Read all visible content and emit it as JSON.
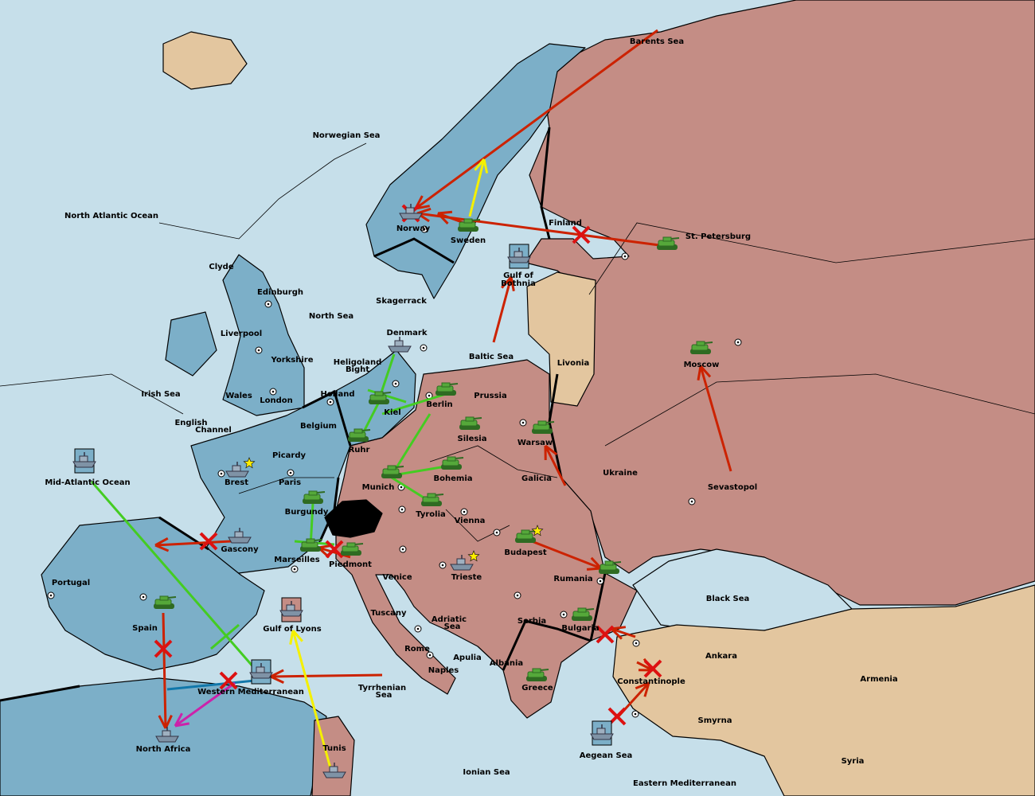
{
  "colors": {
    "sea": "#c6dfea",
    "power_blue": "#7cafc8",
    "power_red": "#c48d85",
    "neutral_tan": "#e3c69f",
    "impassable": "#000000",
    "unit_army": "#55a83a",
    "unit_fleet": "#7f93a6",
    "order_move": "#cc2200",
    "order_support_yellow": "#f4f000",
    "order_support_green": "#44cc22",
    "order_convoy_blue": "#1177aa",
    "order_magenta": "#cc22aa",
    "failed_order_x": "#dd1111",
    "star": "#ffee00"
  },
  "territories": [
    {
      "name": "Barents Sea"
    },
    {
      "name": "Norwegian Sea"
    },
    {
      "name": "North Atlantic Ocean"
    },
    {
      "name": "Norway"
    },
    {
      "name": "Sweden"
    },
    {
      "name": "Finland"
    },
    {
      "name": "St. Petersburg"
    },
    {
      "name": "Gulf of"
    },
    {
      "name": "Bothnia"
    },
    {
      "name": "Clyde"
    },
    {
      "name": "Edinburgh"
    },
    {
      "name": "North Sea"
    },
    {
      "name": "Skagerrack"
    },
    {
      "name": "Liverpool"
    },
    {
      "name": "Denmark"
    },
    {
      "name": "Yorkshire"
    },
    {
      "name": "Heligoland"
    },
    {
      "name": "Bight"
    },
    {
      "name": "Baltic Sea"
    },
    {
      "name": "Livonia"
    },
    {
      "name": "Moscow"
    },
    {
      "name": "Irish Sea"
    },
    {
      "name": "Wales"
    },
    {
      "name": "London"
    },
    {
      "name": "Holland"
    },
    {
      "name": "Prussia"
    },
    {
      "name": "Berlin"
    },
    {
      "name": "Kiel"
    },
    {
      "name": "English"
    },
    {
      "name": "Channel"
    },
    {
      "name": "Belgium"
    },
    {
      "name": "Silesia"
    },
    {
      "name": "Warsaw"
    },
    {
      "name": "Ruhr"
    },
    {
      "name": "Picardy"
    },
    {
      "name": "Ukraine"
    },
    {
      "name": "Brest"
    },
    {
      "name": "Paris"
    },
    {
      "name": "Mid-Atlantic Ocean"
    },
    {
      "name": "Bohemia"
    },
    {
      "name": "Galicia"
    },
    {
      "name": "Munich"
    },
    {
      "name": "Sevastopol"
    },
    {
      "name": "Burgundy"
    },
    {
      "name": "Tyrolia"
    },
    {
      "name": "Vienna"
    },
    {
      "name": "Gascony"
    },
    {
      "name": "Budapest"
    },
    {
      "name": "Marseilles"
    },
    {
      "name": "Piedmont"
    },
    {
      "name": "Venice"
    },
    {
      "name": "Trieste"
    },
    {
      "name": "Rumania"
    },
    {
      "name": "Portugal"
    },
    {
      "name": "Black Sea"
    },
    {
      "name": "Tuscany"
    },
    {
      "name": "Adriatic"
    },
    {
      "name": "Sea"
    },
    {
      "name": "Serbia"
    },
    {
      "name": "Spain"
    },
    {
      "name": "Gulf of Lyons"
    },
    {
      "name": "Bulgaria"
    },
    {
      "name": "Rome"
    },
    {
      "name": "Ankara"
    },
    {
      "name": "Apulia"
    },
    {
      "name": "Albania"
    },
    {
      "name": "Naples"
    },
    {
      "name": "Armenia"
    },
    {
      "name": "Constantinople"
    },
    {
      "name": "Tyrrhenian"
    },
    {
      "name": "Sea"
    },
    {
      "name": "Western Mediterranean"
    },
    {
      "name": "Greece"
    },
    {
      "name": "Smyrna"
    },
    {
      "name": "North Africa"
    },
    {
      "name": "Tunis"
    },
    {
      "name": "Aegean Sea"
    },
    {
      "name": "Ionian Sea"
    },
    {
      "name": "Syria"
    },
    {
      "name": "Eastern Mediterranean"
    }
  ],
  "units": [
    {
      "type": "army",
      "location": "Sweden"
    },
    {
      "type": "army",
      "location": "St. Petersburg"
    },
    {
      "type": "army",
      "location": "Moscow"
    },
    {
      "type": "army",
      "location": "Berlin"
    },
    {
      "type": "army",
      "location": "Silesia"
    },
    {
      "type": "army",
      "location": "Kiel"
    },
    {
      "type": "army",
      "location": "Ruhr"
    },
    {
      "type": "army",
      "location": "Warsaw"
    },
    {
      "type": "army",
      "location": "Munich"
    },
    {
      "type": "army",
      "location": "Bohemia"
    },
    {
      "type": "army",
      "location": "Tyrolia"
    },
    {
      "type": "army",
      "location": "Burgundy"
    },
    {
      "type": "army",
      "location": "Marseilles"
    },
    {
      "type": "army",
      "location": "Piedmont"
    },
    {
      "type": "army",
      "location": "Budapest"
    },
    {
      "type": "army",
      "location": "Rumania"
    },
    {
      "type": "army",
      "location": "Bulgaria"
    },
    {
      "type": "army",
      "location": "Spain"
    },
    {
      "type": "army",
      "location": "Greece"
    },
    {
      "type": "fleet",
      "location": "Norway"
    },
    {
      "type": "fleet",
      "location": "Denmark"
    },
    {
      "type": "fleet",
      "location": "Brest"
    },
    {
      "type": "fleet",
      "location": "Gascony"
    },
    {
      "type": "fleet",
      "location": "Trieste"
    },
    {
      "type": "fleet",
      "location": "North Africa"
    },
    {
      "type": "fleet",
      "location": "Tunis"
    },
    {
      "type": "fleet",
      "location": "Mid-Atlantic Ocean",
      "boxed": true
    },
    {
      "type": "fleet",
      "location": "Gulf of Bothnia",
      "boxed": true
    },
    {
      "type": "fleet",
      "location": "Gulf of Lyons",
      "boxed": true
    },
    {
      "type": "fleet",
      "location": "Western Mediterranean",
      "boxed": true
    },
    {
      "type": "fleet",
      "location": "Aegean Sea",
      "boxed": true
    }
  ],
  "stars": [
    "Brest",
    "Budapest",
    "Trieste"
  ]
}
